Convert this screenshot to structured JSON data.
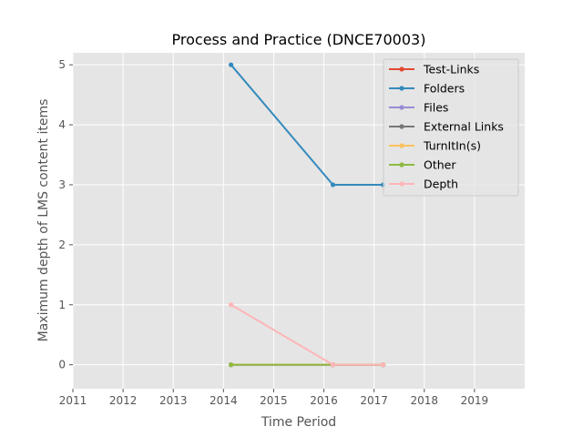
{
  "chart_data": {
    "type": "line",
    "title": "Process and Practice (DNCE70003)",
    "xlabel": "Time Period",
    "ylabel": "Maximum depth of LMS content items",
    "xlim": [
      2011,
      2020
    ],
    "ylim": [
      -0.4,
      5.2
    ],
    "xticks": [
      "2011",
      "2012",
      "2013",
      "2014",
      "2015",
      "2016",
      "2017",
      "2018",
      "2019"
    ],
    "yticks": [
      "0",
      "1",
      "2",
      "3",
      "4",
      "5"
    ],
    "grid": true,
    "legend_position": "top-right",
    "x": [
      2014.15,
      2016.18,
      2017.18
    ],
    "series": [
      {
        "name": "Test-Links",
        "color": "#E24A33",
        "values": [
          0,
          0,
          0
        ]
      },
      {
        "name": "Folders",
        "color": "#348ABD",
        "values": [
          5,
          3,
          3
        ]
      },
      {
        "name": "Files",
        "color": "#988ED5",
        "values": [
          0,
          0,
          0
        ]
      },
      {
        "name": "External Links",
        "color": "#777777",
        "values": [
          0,
          0,
          0
        ]
      },
      {
        "name": "TurnItIn(s)",
        "color": "#FBC15E",
        "values": [
          0,
          0,
          0
        ]
      },
      {
        "name": "Other",
        "color": "#8EBA42",
        "values": [
          0,
          0,
          0
        ]
      },
      {
        "name": "Depth",
        "color": "#FFB5B8",
        "values": [
          1,
          0,
          0
        ]
      }
    ]
  }
}
